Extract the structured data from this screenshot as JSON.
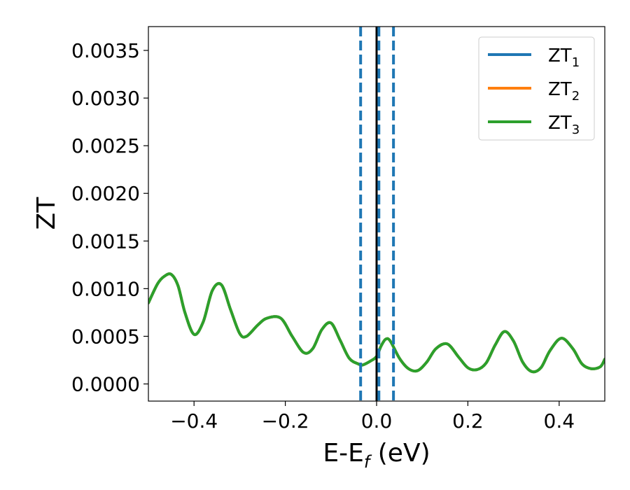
{
  "chart_data": {
    "type": "line",
    "title": "",
    "xlabel_main": "E-E",
    "xlabel_sub": "f",
    "xlabel_tail": " (eV)",
    "ylabel": "ZT",
    "xlim": [
      -0.5,
      0.5
    ],
    "ylim": [
      -0.00018,
      0.00375
    ],
    "xticks": [
      -0.4,
      -0.2,
      0.0,
      0.2,
      0.4
    ],
    "xtick_labels": [
      "−0.4",
      "−0.2",
      "0.0",
      "0.2",
      "0.4"
    ],
    "yticks": [
      0.0,
      0.0005,
      0.001,
      0.0015,
      0.002,
      0.0025,
      0.003,
      0.0035
    ],
    "ytick_labels": [
      "0.0000",
      "0.0005",
      "0.0010",
      "0.0015",
      "0.0020",
      "0.0025",
      "0.0030",
      "0.0035"
    ],
    "grid": false,
    "legend_position": "top-right",
    "vertical_lines": [
      {
        "x": -0.035,
        "style": "dashed",
        "color": "#1f77b4"
      },
      {
        "x": 0.0,
        "style": "solid",
        "color": "#000000"
      },
      {
        "x": 0.005,
        "style": "dashed",
        "color": "#1f77b4"
      },
      {
        "x": 0.037,
        "style": "dashed",
        "color": "#1f77b4"
      }
    ],
    "x": [
      -0.5,
      -0.48,
      -0.465,
      -0.45,
      -0.435,
      -0.42,
      -0.4,
      -0.38,
      -0.36,
      -0.34,
      -0.32,
      -0.3,
      -0.285,
      -0.26,
      -0.24,
      -0.21,
      -0.185,
      -0.16,
      -0.14,
      -0.12,
      -0.1,
      -0.08,
      -0.06,
      -0.04,
      -0.03,
      -0.01,
      0.0,
      0.01,
      0.02,
      0.03,
      0.05,
      0.07,
      0.09,
      0.11,
      0.13,
      0.155,
      0.18,
      0.2,
      0.22,
      0.24,
      0.26,
      0.28,
      0.3,
      0.32,
      0.34,
      0.36,
      0.38,
      0.405,
      0.43,
      0.45,
      0.47,
      0.49,
      0.5
    ],
    "series": [
      {
        "name": "ZT",
        "sub": "1",
        "color": "#1f77b4",
        "values": [
          0.00085,
          0.00105,
          0.00113,
          0.00115,
          0.00103,
          0.00075,
          0.00052,
          0.00065,
          0.00098,
          0.00104,
          0.00078,
          0.00053,
          0.0005,
          0.00062,
          0.00069,
          0.00069,
          0.0005,
          0.00033,
          0.00037,
          0.00057,
          0.00064,
          0.00046,
          0.00027,
          0.00021,
          0.0002,
          0.00025,
          0.00029,
          0.0004,
          0.00047,
          0.00045,
          0.00027,
          0.00016,
          0.00014,
          0.00023,
          0.00037,
          0.00042,
          0.00028,
          0.00017,
          0.00015,
          0.00022,
          0.00041,
          0.00055,
          0.00045,
          0.00023,
          0.00013,
          0.00017,
          0.00035,
          0.00048,
          0.00037,
          0.00021,
          0.00016,
          0.00018,
          0.00026
        ]
      },
      {
        "name": "ZT",
        "sub": "2",
        "color": "#ff7f0e",
        "values": [
          0.00085,
          0.00105,
          0.00113,
          0.00115,
          0.00103,
          0.00075,
          0.00052,
          0.00065,
          0.00098,
          0.00104,
          0.00078,
          0.00053,
          0.0005,
          0.00062,
          0.00069,
          0.00069,
          0.0005,
          0.00033,
          0.00037,
          0.00057,
          0.00064,
          0.00046,
          0.00027,
          0.00021,
          0.0002,
          0.00025,
          0.00029,
          0.0004,
          0.00047,
          0.00045,
          0.00027,
          0.00016,
          0.00014,
          0.00023,
          0.00037,
          0.00042,
          0.00028,
          0.00017,
          0.00015,
          0.00022,
          0.00041,
          0.00055,
          0.00045,
          0.00023,
          0.00013,
          0.00017,
          0.00035,
          0.00048,
          0.00037,
          0.00021,
          0.00016,
          0.00018,
          0.00026
        ]
      },
      {
        "name": "ZT",
        "sub": "3",
        "color": "#2ca02c",
        "values": [
          0.00085,
          0.00105,
          0.00113,
          0.00115,
          0.00103,
          0.00075,
          0.00052,
          0.00065,
          0.00098,
          0.00104,
          0.00078,
          0.00053,
          0.0005,
          0.00062,
          0.00069,
          0.00069,
          0.0005,
          0.00033,
          0.00037,
          0.00057,
          0.00064,
          0.00046,
          0.00027,
          0.00021,
          0.0002,
          0.00025,
          0.00029,
          0.0004,
          0.00047,
          0.00045,
          0.00027,
          0.00016,
          0.00014,
          0.00023,
          0.00037,
          0.00042,
          0.00028,
          0.00017,
          0.00015,
          0.00022,
          0.00041,
          0.00055,
          0.00045,
          0.00023,
          0.00013,
          0.00017,
          0.00035,
          0.00048,
          0.00037,
          0.00021,
          0.00016,
          0.00018,
          0.00026
        ]
      }
    ]
  }
}
